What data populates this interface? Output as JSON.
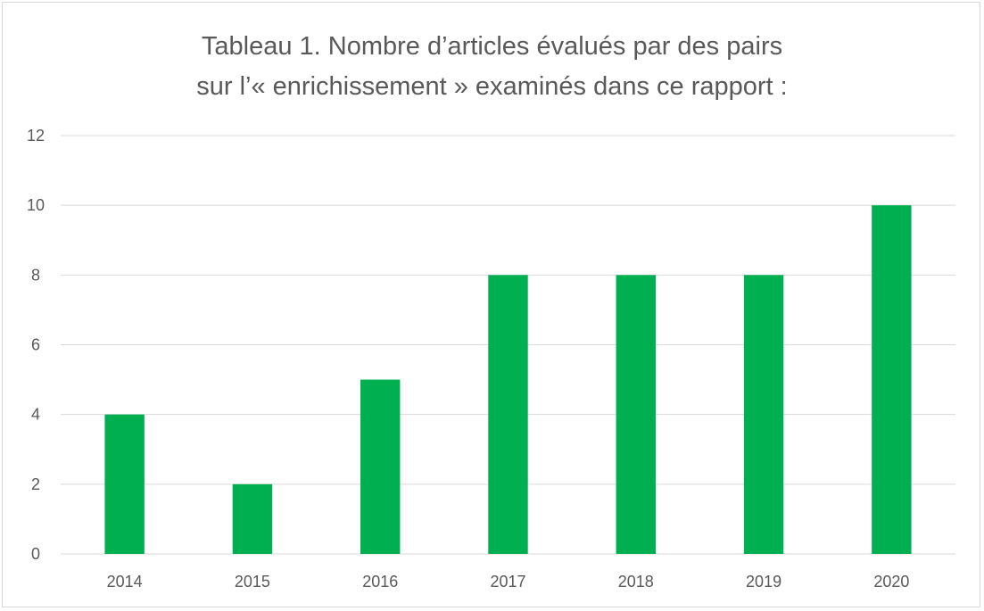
{
  "chart_data": {
    "type": "bar",
    "title_lines": [
      "Tableau 1. Nombre d’articles évalués par des pairs",
      "sur l’« enrichissement » examinés dans ce rapport :"
    ],
    "categories": [
      "2014",
      "2015",
      "2016",
      "2017",
      "2018",
      "2019",
      "2020"
    ],
    "values": [
      4,
      2,
      5,
      8,
      8,
      8,
      10
    ],
    "ylim": [
      0,
      12
    ],
    "yticks": [
      "0",
      "2",
      "4",
      "6",
      "8",
      "10",
      "12"
    ],
    "grid": true,
    "legend": "none",
    "bar_color": "#00b050",
    "grid_color": "#d9d9d9",
    "text_color": "#595959"
  }
}
